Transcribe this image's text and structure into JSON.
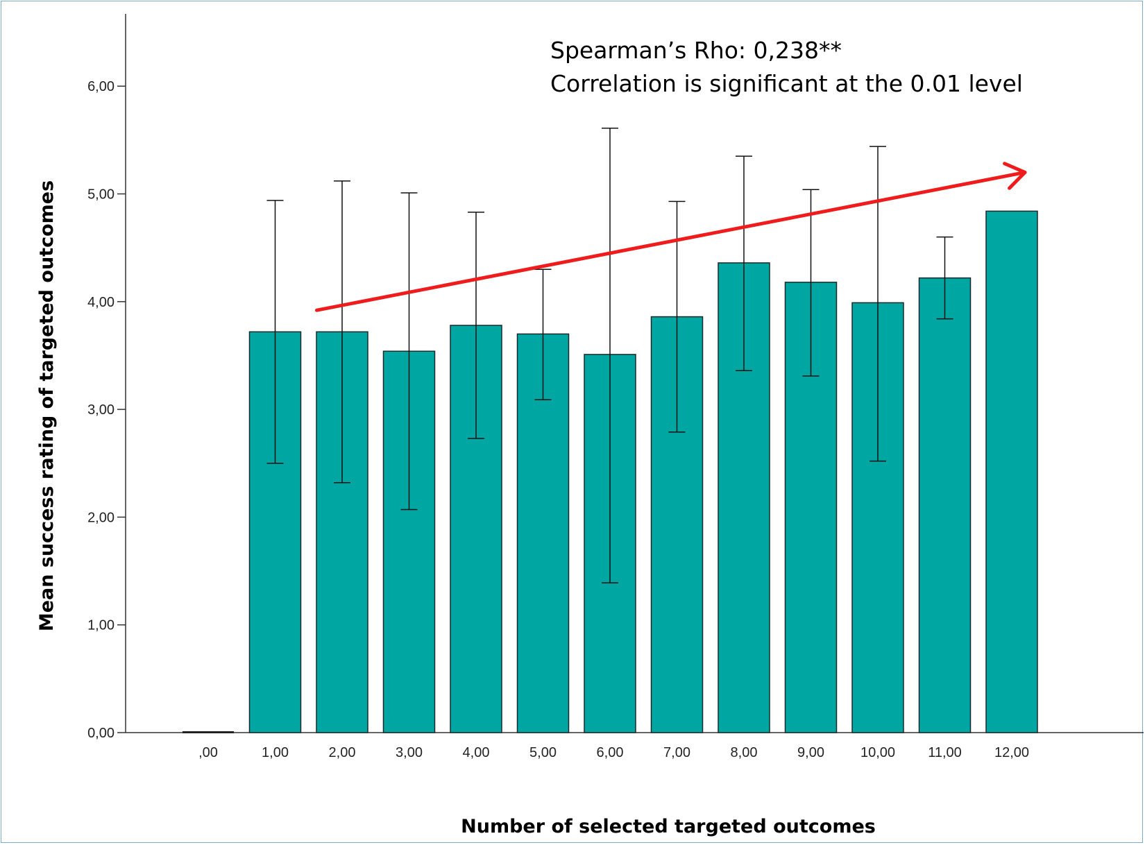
{
  "chart_data": {
    "type": "bar",
    "title": "",
    "xlabel": "Number of selected targeted outcomes",
    "ylabel": "Mean success rating of targeted outcomes",
    "categories": [
      ",00",
      "1,00",
      "2,00",
      "3,00",
      "4,00",
      "5,00",
      "6,00",
      "7,00",
      "8,00",
      "9,00",
      "10,00",
      "11,00",
      "12,00"
    ],
    "values": [
      0.0,
      3.72,
      3.72,
      3.54,
      3.78,
      3.7,
      3.51,
      3.86,
      4.36,
      4.18,
      3.99,
      4.22,
      4.84
    ],
    "error_low": [
      null,
      2.5,
      2.32,
      2.07,
      2.73,
      3.09,
      1.39,
      2.79,
      3.36,
      3.31,
      2.52,
      3.84,
      null
    ],
    "error_high": [
      null,
      4.94,
      5.12,
      5.01,
      4.83,
      4.3,
      5.61,
      4.93,
      5.35,
      5.04,
      5.44,
      4.6,
      null
    ],
    "yticks": [
      "0,00",
      "1,00",
      "2,00",
      "3,00",
      "4,00",
      "5,00",
      "6,00"
    ],
    "ytick_values": [
      0,
      1,
      2,
      3,
      4,
      5,
      6
    ],
    "ylim": [
      0,
      6.8
    ],
    "bar_color": "#00a6a2",
    "bar_edge_color": "#1a2a2a",
    "grid": false,
    "legend": null,
    "annotations": {
      "line1": "Spearman’s Rho: 0,238**",
      "line2": "Correlation is significant at the 0.01 level"
    },
    "trend_arrow": {
      "color": "#ee1c1c",
      "from": {
        "x": "1,00",
        "y": 3.92
      },
      "to": {
        "x": "12,00",
        "y": 5.2
      }
    }
  }
}
